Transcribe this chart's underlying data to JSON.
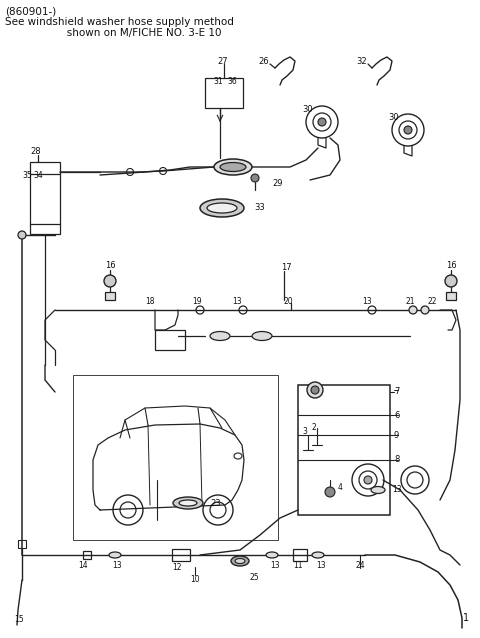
{
  "bg_color": "#ffffff",
  "line_color": "#222222",
  "text_color": "#111111",
  "fig_width": 4.8,
  "fig_height": 6.38,
  "dpi": 100,
  "title_lines": [
    "(860901-)",
    "See windshield washer hose supply method",
    "                   shown on M/FICHE NO. 3-E 10"
  ]
}
